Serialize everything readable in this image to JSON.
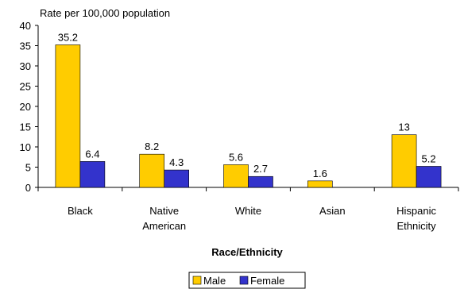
{
  "chart_data": {
    "type": "bar",
    "title": "",
    "ylabel": "Rate per 100,000 population",
    "xlabel": "Race/Ethnicity",
    "categories": [
      [
        "Black"
      ],
      [
        "Native",
        "American"
      ],
      [
        "White"
      ],
      [
        "Asian"
      ],
      [
        "Hispanic",
        "Ethnicity"
      ]
    ],
    "series": [
      {
        "name": "Male",
        "color": "#FFCC00",
        "values": [
          35.2,
          8.2,
          5.6,
          1.6,
          13
        ],
        "labels": [
          "35.2",
          "8.2",
          "5.6",
          "1.6",
          "13"
        ]
      },
      {
        "name": "Female",
        "color": "#3333CC",
        "values": [
          6.4,
          4.3,
          2.7,
          null,
          5.2
        ],
        "labels": [
          "6.4",
          "4.3",
          "2.7",
          "",
          "5.2"
        ]
      }
    ],
    "yticks": [
      0,
      5,
      10,
      15,
      20,
      25,
      30,
      35,
      40
    ],
    "ylim": [
      0,
      40
    ],
    "grid": false,
    "legend_position": "bottom"
  }
}
